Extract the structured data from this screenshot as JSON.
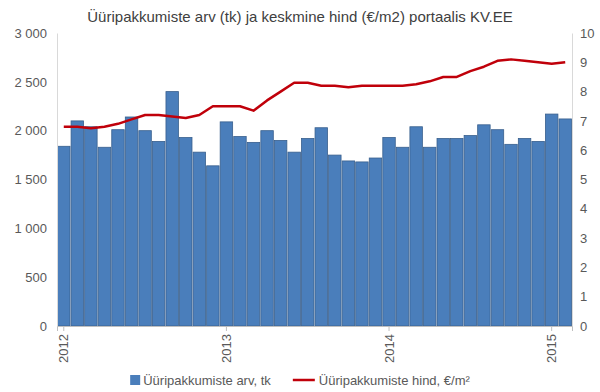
{
  "chart_data": {
    "type": "bar",
    "title": "Üüripakkumiste arv (tk) ja keskmine hind (€/m2) portaalis KV.EE",
    "categories": [
      "2012",
      null,
      null,
      null,
      null,
      null,
      null,
      null,
      null,
      null,
      null,
      null,
      "2013",
      null,
      null,
      null,
      null,
      null,
      null,
      null,
      null,
      null,
      null,
      null,
      "2014",
      null,
      null,
      null,
      null,
      null,
      null,
      null,
      null,
      null,
      null,
      null,
      "2015",
      null
    ],
    "series": [
      {
        "name": "Üüripakkumiste arv, tk",
        "type": "bar",
        "color": "#4a7ebb",
        "values": [
          1840,
          2100,
          2040,
          1830,
          2010,
          2140,
          2000,
          1890,
          2400,
          1930,
          1780,
          1640,
          2090,
          1940,
          1880,
          2000,
          1900,
          1780,
          1920,
          2030,
          1750,
          1690,
          1680,
          1720,
          1930,
          1830,
          2040,
          1830,
          1920,
          1920,
          1950,
          2060,
          2010,
          1860,
          1920,
          1890,
          2170,
          2120
        ]
      },
      {
        "name": "Üüripakkumiste hind, €/m²",
        "type": "line",
        "axis": "y2",
        "color": "#c0000a",
        "values": [
          6.8,
          6.8,
          6.75,
          6.8,
          6.9,
          7.05,
          7.2,
          7.2,
          7.15,
          7.1,
          7.2,
          7.5,
          7.5,
          7.5,
          7.35,
          7.7,
          8.0,
          8.3,
          8.3,
          8.2,
          8.2,
          8.15,
          8.2,
          8.2,
          8.2,
          8.2,
          8.25,
          8.35,
          8.5,
          8.5,
          8.7,
          8.85,
          9.05,
          9.1,
          9.05,
          9.0,
          8.95,
          9.0
        ]
      }
    ],
    "ylim": [
      0,
      3000
    ],
    "yticks": [
      0,
      500,
      {
        "value": 1000,
        "label": "1 000"
      },
      {
        "value": 1500,
        "label": "1 500"
      },
      {
        "value": 2000,
        "label": "2 000"
      },
      {
        "value": 2500,
        "label": "2 500"
      },
      {
        "value": 3000,
        "label": "3 000"
      }
    ],
    "y2lim": [
      0,
      10
    ],
    "y2ticks": [
      0,
      1,
      2,
      3,
      4,
      5,
      6,
      7,
      8,
      9,
      10
    ],
    "grid": false,
    "legend": "bottom"
  }
}
